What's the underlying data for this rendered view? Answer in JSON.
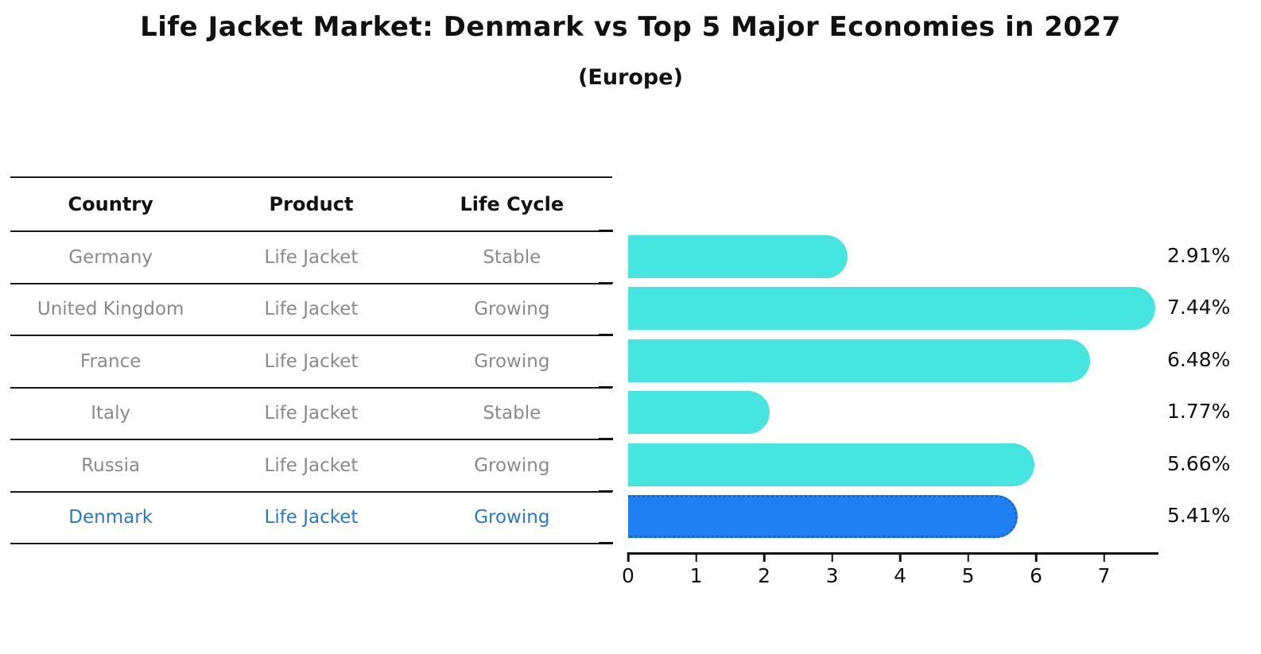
{
  "title": "Life Jacket Market: Denmark vs Top 5 Major Economies in 2027",
  "subtitle": "(Europe)",
  "table": {
    "headers": [
      "Country",
      "Product",
      "Life Cycle"
    ],
    "rows": [
      {
        "country": "Germany",
        "product": "Life Jacket",
        "life_cycle": "Stable",
        "highlighted": false
      },
      {
        "country": "United Kingdom",
        "product": "Life Jacket",
        "life_cycle": "Growing",
        "highlighted": false
      },
      {
        "country": "France",
        "product": "Life Jacket",
        "life_cycle": "Growing",
        "highlighted": false
      },
      {
        "country": "Italy",
        "product": "Life Jacket",
        "life_cycle": "Stable",
        "highlighted": false
      },
      {
        "country": "Russia",
        "product": "Life Jacket",
        "life_cycle": "Growing",
        "highlighted": false
      },
      {
        "country": "Denmark",
        "product": "Life Jacket",
        "life_cycle": "Growing",
        "highlighted": true
      }
    ]
  },
  "chart_data": {
    "type": "bar",
    "orientation": "horizontal",
    "title": "Life Jacket Market: Denmark vs Top 5 Major Economies in 2027 (Europe)",
    "categories": [
      "Germany",
      "United Kingdom",
      "France",
      "Italy",
      "Russia",
      "Denmark"
    ],
    "values": [
      2.91,
      7.44,
      6.48,
      1.77,
      5.66,
      5.41
    ],
    "value_labels": [
      "2.91%",
      "7.44%",
      "6.48%",
      "1.77%",
      "5.66%",
      "5.41%"
    ],
    "highlight_index": 5,
    "x_ticks": [
      "0",
      "1",
      "2",
      "3",
      "4",
      "5",
      "6",
      "7"
    ],
    "xlim": [
      0,
      7.8
    ],
    "grid": false,
    "legend": null,
    "xlabel": "",
    "ylabel": ""
  },
  "colors": {
    "bar": "#46e5e0",
    "highlight_bar": "#2080f2",
    "highlight_bar_edge": "#1267d8",
    "row_text": "#8a8a8a",
    "highlight_text": "#2979c9",
    "header_text": "#111111",
    "axis": "#111111"
  }
}
